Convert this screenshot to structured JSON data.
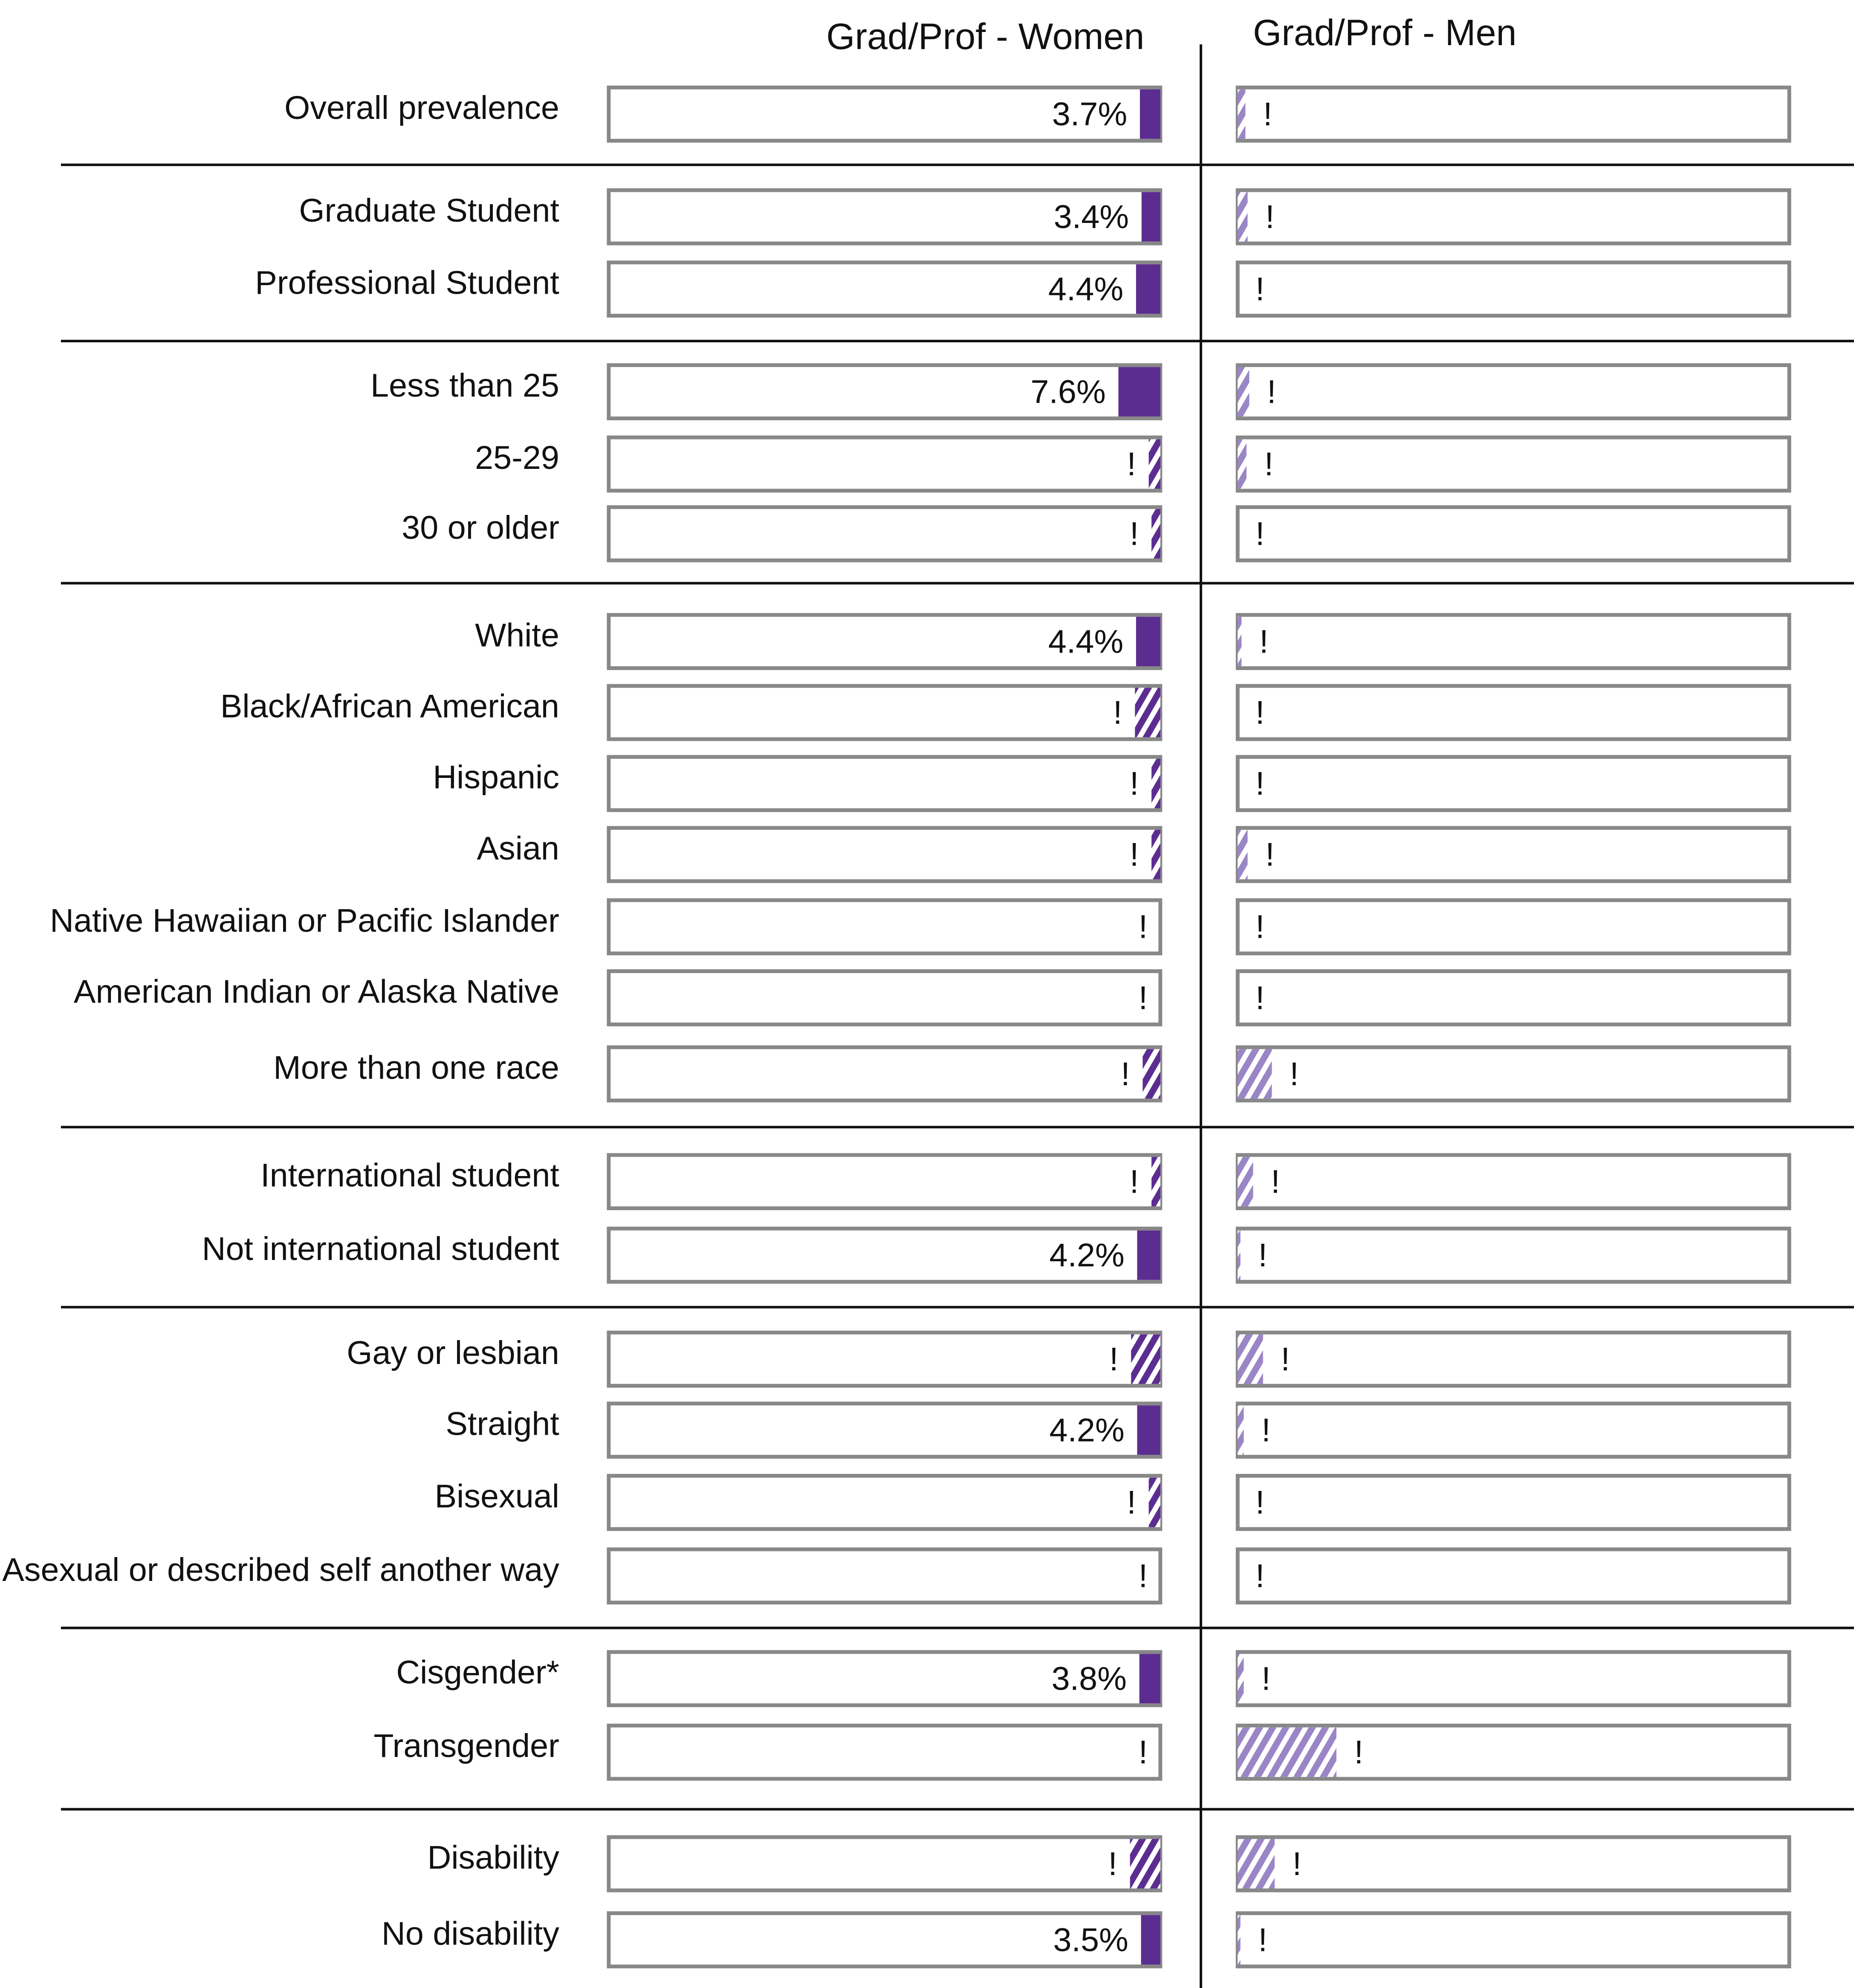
{
  "chart_data": {
    "type": "bar",
    "orientation": "horizontal",
    "categories": [
      "Overall prevalence",
      "Graduate Student",
      "Professional Student",
      "Less than 25",
      "25-29",
      "30 or older",
      "White",
      "Black/African American",
      "Hispanic",
      "Asian",
      "Native Hawaiian or Pacific Islander",
      "American Indian or Alaska Native",
      "More than one race",
      "International student",
      "Not  international student",
      "Gay or lesbian",
      "Straight",
      "Bisexual",
      "Asexual or described self another way",
      "Cisgender*",
      "Transgender",
      "Disability",
      "No disability"
    ],
    "xlim": [
      0,
      100
    ],
    "series": [
      {
        "name": "Grad/Prof - Women",
        "color": "#5c2d91",
        "values": [
          3.7,
          3.4,
          4.4,
          7.6,
          2.1,
          1.6,
          4.4,
          4.6,
          1.6,
          1.6,
          0,
          0,
          3.2,
          1.6,
          4.2,
          5.3,
          4.2,
          2.1,
          0,
          3.8,
          0,
          5.5,
          3.5
        ],
        "value_labels": [
          "3.7%",
          "3.4%",
          "4.4%",
          "7.6%",
          "!",
          "!",
          "4.4%",
          "!",
          "!",
          "!",
          "!",
          "!",
          "!",
          "!",
          "4.2%",
          "!",
          "4.2%",
          "!",
          "!",
          "3.8%",
          "!",
          "!",
          "3.5%"
        ],
        "hatched": [
          false,
          false,
          false,
          false,
          true,
          true,
          false,
          true,
          true,
          true,
          true,
          true,
          true,
          true,
          false,
          true,
          false,
          true,
          true,
          false,
          true,
          true,
          false
        ]
      },
      {
        "name": "Grad/Prof - Men",
        "color": "#9a86c6",
        "values": [
          1.4,
          1.8,
          0,
          2.1,
          1.6,
          0,
          0.7,
          0,
          0,
          1.8,
          0,
          0,
          6.2,
          2.8,
          0.5,
          4.6,
          1.1,
          0,
          0,
          1.1,
          17.9,
          6.7,
          0.5
        ],
        "value_labels": [
          "!",
          "!",
          "!",
          "!",
          "!",
          "!",
          "!",
          "!",
          "!",
          "!",
          "!",
          "!",
          "!",
          "!",
          "!",
          "!",
          "!",
          "!",
          "!",
          "!",
          "!",
          "!",
          "!"
        ],
        "hatched": [
          true,
          true,
          true,
          true,
          true,
          true,
          true,
          true,
          true,
          true,
          true,
          true,
          true,
          true,
          true,
          true,
          true,
          true,
          true,
          true,
          true,
          true,
          true
        ]
      }
    ]
  }
}
